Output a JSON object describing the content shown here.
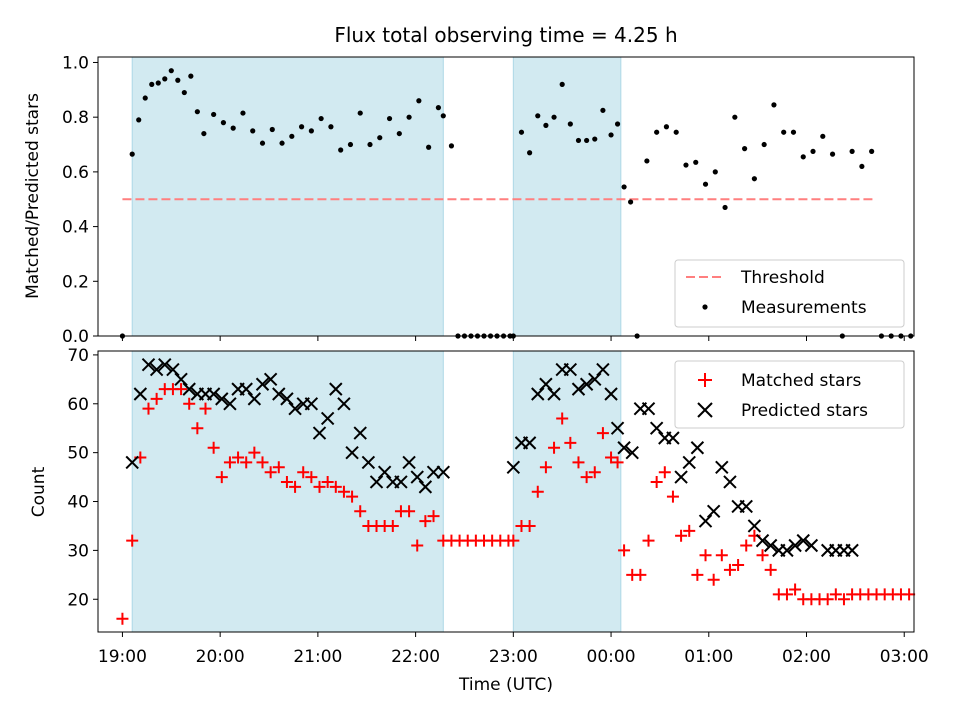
{
  "title": "Flux total observing time = 4.25 h",
  "colors": {
    "shade": "#add8e6",
    "threshold": "#ff7f7f",
    "measurements": "#000000",
    "matched": "#ff0000",
    "predicted": "#000000"
  },
  "chart_data": [
    {
      "type": "scatter",
      "panel": "top",
      "title": "Flux total observing time = 4.25 h",
      "xlabel": "",
      "ylabel": "Matched/Predicted stars",
      "xlim": [
        "18:45",
        "03:06"
      ],
      "ylim": [
        0,
        1.02
      ],
      "yticks": [
        0.0,
        0.2,
        0.4,
        0.6,
        0.8,
        1.0
      ],
      "ytick_labels": [
        "0.0",
        "0.2",
        "0.4",
        "0.6",
        "0.8",
        "1.0"
      ],
      "shaded_intervals": [
        [
          "19:06",
          "22:17"
        ],
        [
          "23:00",
          "00:06"
        ]
      ],
      "legend": {
        "placement": "lower right",
        "entries": [
          "Threshold",
          "Measurements"
        ]
      },
      "grid": false,
      "series": [
        {
          "name": "Threshold",
          "style": "dashed-line",
          "x": [
            "19:00",
            "02:42"
          ],
          "y": [
            0.5,
            0.5
          ]
        },
        {
          "name": "Measurements",
          "style": "dot",
          "x": [
            "19:00",
            "19:06",
            "19:10",
            "19:14",
            "19:18",
            "19:22",
            "19:26",
            "19:30",
            "19:34",
            "19:38",
            "19:42",
            "19:46",
            "19:50",
            "19:56",
            "20:02",
            "20:08",
            "20:14",
            "20:20",
            "20:26",
            "20:32",
            "20:38",
            "20:44",
            "20:50",
            "20:56",
            "21:02",
            "21:08",
            "21:14",
            "21:20",
            "21:26",
            "21:32",
            "21:38",
            "21:44",
            "21:50",
            "21:56",
            "22:02",
            "22:08",
            "22:14",
            "22:17",
            "22:22",
            "22:26",
            "22:30",
            "22:34",
            "22:38",
            "22:42",
            "22:46",
            "22:50",
            "22:54",
            "22:58",
            "23:00",
            "23:05",
            "23:10",
            "23:15",
            "23:20",
            "23:25",
            "23:30",
            "23:35",
            "23:40",
            "23:45",
            "23:50",
            "23:55",
            "00:00",
            "00:04",
            "00:08",
            "00:12",
            "00:16",
            "00:22",
            "00:28",
            "00:34",
            "00:40",
            "00:46",
            "00:52",
            "00:58",
            "01:04",
            "01:10",
            "01:16",
            "01:22",
            "01:28",
            "01:34",
            "01:40",
            "01:46",
            "01:52",
            "01:58",
            "02:04",
            "02:10",
            "02:16",
            "02:22",
            "02:28",
            "02:34",
            "02:40",
            "02:46",
            "02:52",
            "02:58",
            "03:04"
          ],
          "y": [
            0,
            0.665,
            0.79,
            0.87,
            0.92,
            0.925,
            0.94,
            0.97,
            0.935,
            0.89,
            0.95,
            0.82,
            0.74,
            0.81,
            0.78,
            0.76,
            0.815,
            0.75,
            0.705,
            0.755,
            0.705,
            0.73,
            0.765,
            0.75,
            0.795,
            0.765,
            0.68,
            0.7,
            0.815,
            0.7,
            0.725,
            0.795,
            0.74,
            0.8,
            0.86,
            0.69,
            0.835,
            0.805,
            0.695,
            0,
            0,
            0,
            0,
            0,
            0,
            0,
            0,
            0,
            0,
            0.745,
            0.67,
            0.805,
            0.77,
            0.8,
            0.92,
            0.775,
            0.715,
            0.715,
            0.72,
            0.825,
            0.735,
            0.775,
            0.545,
            0.49,
            0,
            0.64,
            0.745,
            0.765,
            0.745,
            0.625,
            0.635,
            0.555,
            0.6,
            0.47,
            0.8,
            0.685,
            0.575,
            0.7,
            0.845,
            0.745,
            0.745,
            0.655,
            0.675,
            0.73,
            0.665,
            0,
            0.675,
            0.62,
            0.675,
            0,
            0,
            0,
            0
          ]
        }
      ]
    },
    {
      "type": "scatter",
      "panel": "bottom",
      "xlabel": "Time (UTC)",
      "ylabel": "Count",
      "xlim": [
        "18:45",
        "03:06"
      ],
      "ylim": [
        13.3,
        70.8
      ],
      "xticks": [
        "19:00",
        "20:00",
        "21:00",
        "22:00",
        "23:00",
        "00:00",
        "01:00",
        "02:00",
        "03:00"
      ],
      "yticks": [
        20,
        30,
        40,
        50,
        60,
        70
      ],
      "ytick_labels": [
        "20",
        "30",
        "40",
        "50",
        "60",
        "70"
      ],
      "shaded_intervals": [
        [
          "19:06",
          "22:17"
        ],
        [
          "23:00",
          "00:06"
        ]
      ],
      "legend": {
        "placement": "upper right",
        "entries": [
          "Matched stars",
          "Predicted stars"
        ]
      },
      "grid": false,
      "series": [
        {
          "name": "Matched stars",
          "marker": "+",
          "x": [
            "19:00",
            "19:06",
            "19:11",
            "19:16",
            "19:21",
            "19:26",
            "19:31",
            "19:36",
            "19:41",
            "19:46",
            "19:51",
            "19:56",
            "20:01",
            "20:06",
            "20:11",
            "20:16",
            "20:21",
            "20:26",
            "20:31",
            "20:36",
            "20:41",
            "20:46",
            "20:51",
            "20:56",
            "21:01",
            "21:06",
            "21:11",
            "21:16",
            "21:21",
            "21:26",
            "21:31",
            "21:36",
            "21:41",
            "21:46",
            "21:51",
            "21:56",
            "22:01",
            "22:06",
            "22:11",
            "22:17",
            "22:22",
            "22:27",
            "22:32",
            "22:37",
            "22:42",
            "22:47",
            "22:52",
            "22:57",
            "23:00",
            "23:05",
            "23:10",
            "23:15",
            "23:20",
            "23:25",
            "23:30",
            "23:35",
            "23:40",
            "23:45",
            "23:50",
            "23:55",
            "00:00",
            "00:04",
            "00:08",
            "00:13",
            "00:18",
            "00:23",
            "00:28",
            "00:33",
            "00:38",
            "00:43",
            "00:48",
            "00:53",
            "00:58",
            "01:03",
            "01:08",
            "01:13",
            "01:18",
            "01:23",
            "01:28",
            "01:33",
            "01:38",
            "01:43",
            "01:48",
            "01:53",
            "01:58",
            "02:03",
            "02:08",
            "02:13",
            "02:18",
            "02:23",
            "02:28",
            "02:33",
            "02:38",
            "02:43",
            "02:48",
            "02:53",
            "02:58",
            "03:03"
          ],
          "y": [
            16,
            32,
            49,
            59,
            61,
            63,
            63,
            63,
            60,
            55,
            59,
            51,
            45,
            48,
            49,
            48,
            50,
            48,
            46,
            47,
            44,
            43,
            46,
            45,
            43,
            44,
            43,
            42,
            41,
            38,
            35,
            35,
            35,
            35,
            38,
            38,
            31,
            36,
            37,
            32,
            32,
            32,
            32,
            32,
            32,
            32,
            32,
            32,
            32,
            35,
            35,
            42,
            47,
            51,
            57,
            52,
            48,
            45,
            46,
            54,
            49,
            48,
            30,
            25,
            25,
            32,
            44,
            46,
            41,
            33,
            34,
            25,
            29,
            24,
            29,
            26,
            27,
            31,
            33,
            29,
            26,
            21,
            21,
            22,
            20,
            20,
            20,
            20,
            21,
            20,
            21,
            21,
            21,
            21,
            21,
            21,
            21,
            21
          ]
        },
        {
          "name": "Predicted stars",
          "marker": "x",
          "x": [
            "19:06",
            "19:11",
            "19:16",
            "19:21",
            "19:26",
            "19:31",
            "19:36",
            "19:41",
            "19:46",
            "19:51",
            "19:56",
            "20:01",
            "20:06",
            "20:11",
            "20:16",
            "20:21",
            "20:26",
            "20:31",
            "20:36",
            "20:41",
            "20:46",
            "20:51",
            "20:56",
            "21:01",
            "21:06",
            "21:11",
            "21:16",
            "21:21",
            "21:26",
            "21:31",
            "21:36",
            "21:41",
            "21:46",
            "21:51",
            "21:56",
            "22:01",
            "22:06",
            "22:11",
            "22:17",
            "23:00",
            "23:05",
            "23:10",
            "23:15",
            "23:20",
            "23:25",
            "23:30",
            "23:35",
            "23:40",
            "23:45",
            "23:50",
            "23:55",
            "00:00",
            "00:04",
            "00:08",
            "00:13",
            "00:18",
            "00:23",
            "00:28",
            "00:33",
            "00:38",
            "00:43",
            "00:48",
            "00:53",
            "00:58",
            "01:03",
            "01:08",
            "01:13",
            "01:18",
            "01:23",
            "01:28",
            "01:33",
            "01:38",
            "01:43",
            "01:48",
            "01:53",
            "01:58",
            "02:03",
            "02:13",
            "02:18",
            "02:23",
            "02:28"
          ],
          "y": [
            48,
            62,
            68,
            67,
            68,
            67,
            65,
            63,
            62,
            62,
            62,
            61,
            60,
            63,
            63,
            61,
            64,
            65,
            62,
            61,
            59,
            60,
            60,
            54,
            57,
            63,
            60,
            50,
            54,
            48,
            44,
            46,
            44,
            44,
            48,
            45,
            43,
            46,
            46,
            47,
            52,
            52,
            62,
            64,
            62,
            67,
            67,
            63,
            64,
            65,
            67,
            62,
            55,
            51,
            50,
            59,
            59,
            55,
            53,
            53,
            45,
            48,
            51,
            36,
            38,
            47,
            44,
            39,
            39,
            35,
            32,
            31,
            30,
            30,
            31,
            32,
            31,
            30,
            30,
            30,
            30
          ]
        }
      ]
    }
  ]
}
